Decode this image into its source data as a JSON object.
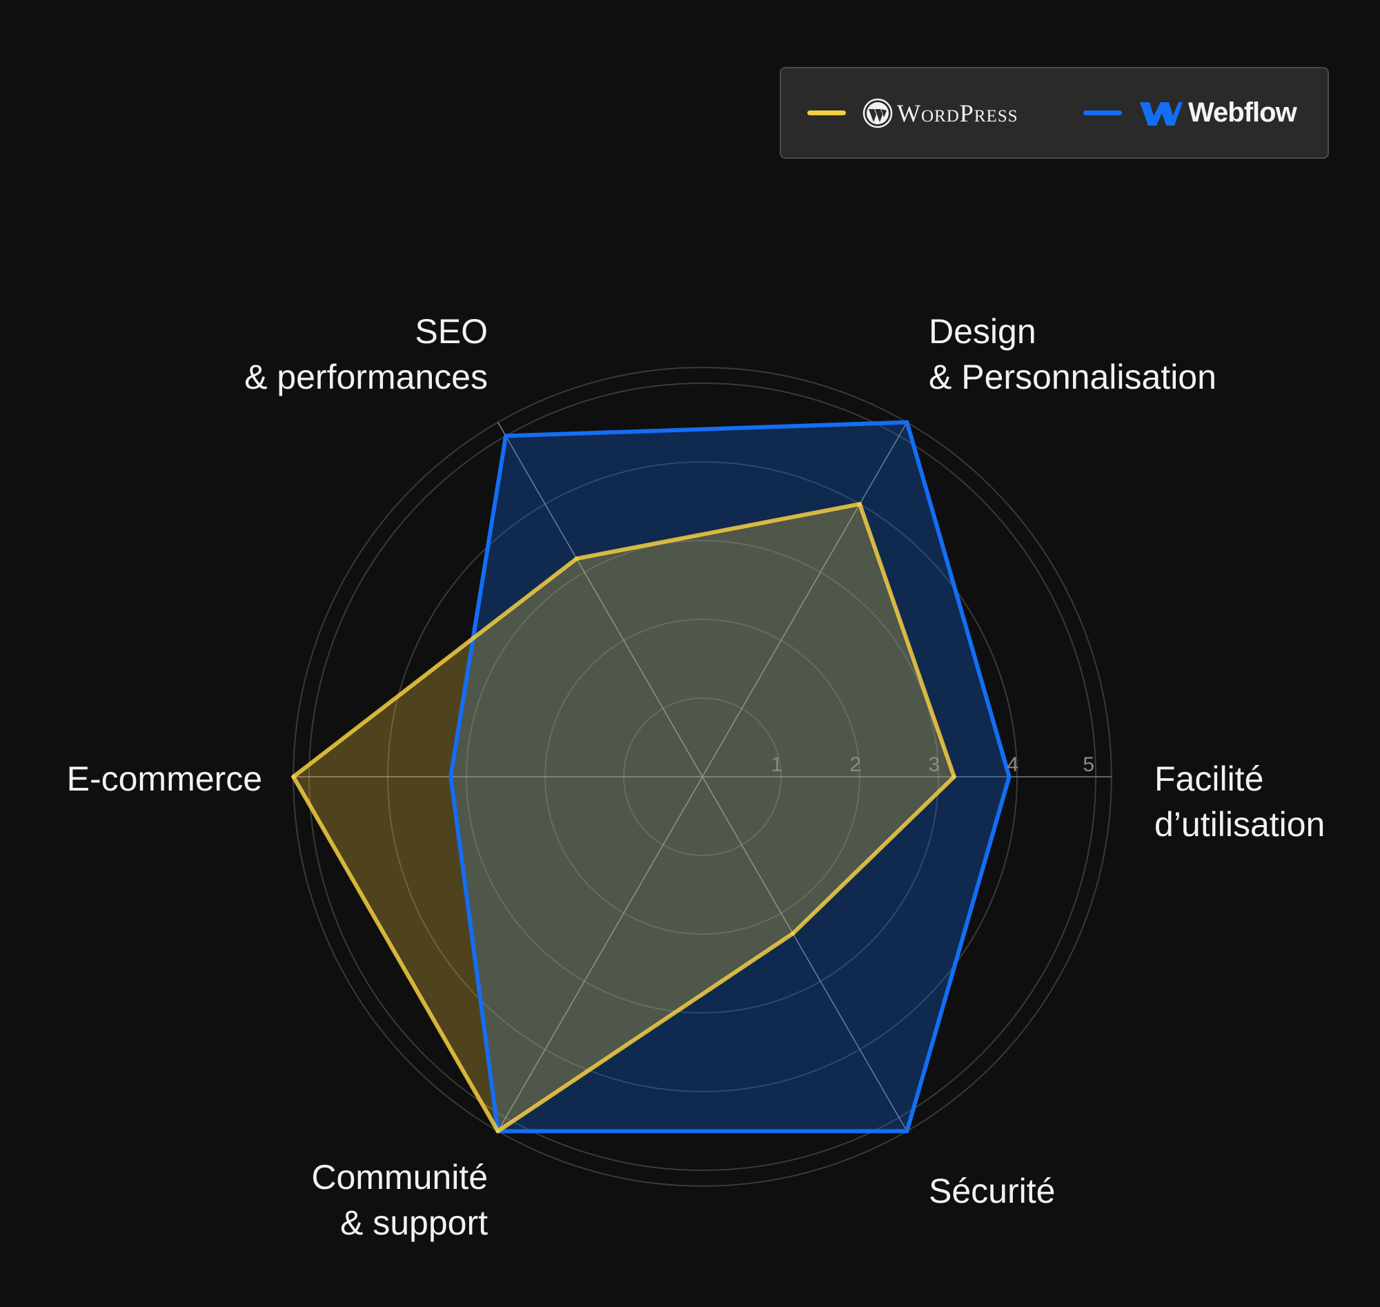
{
  "colors": {
    "background": "#0f0f0f",
    "grid": "#3a3a3a",
    "spoke": "#9a9a9a",
    "wordpress": "#f4ce42",
    "webflow": "#146ef5"
  },
  "legend": {
    "wordpress_label": "WordPress",
    "webflow_label": "Webflow",
    "wordpress_icon": "wordpress-logo-icon",
    "webflow_icon": "webflow-logo-icon"
  },
  "chart_data": {
    "type": "radar",
    "title": "",
    "axes": [
      {
        "lines": [
          "Facilité",
          "d’utilisation"
        ]
      },
      {
        "lines": [
          "Design",
          "& Personnalisation"
        ]
      },
      {
        "lines": [
          "SEO",
          "& performances"
        ]
      },
      {
        "lines": [
          "E-commerce"
        ]
      },
      {
        "lines": [
          "Communité",
          "& support"
        ]
      },
      {
        "lines": [
          "Sécurité"
        ]
      }
    ],
    "ticks": [
      "1",
      "2",
      "3",
      "4",
      "5"
    ],
    "range": [
      0,
      5
    ],
    "series": [
      {
        "name": "WordPress",
        "values": [
          3.2,
          4.0,
          3.2,
          5.2,
          5.2,
          2.3
        ]
      },
      {
        "name": "Webflow",
        "values": [
          3.9,
          5.2,
          5.0,
          3.2,
          5.2,
          5.2
        ]
      }
    ],
    "legend_position": "top-right",
    "grid": true
  }
}
